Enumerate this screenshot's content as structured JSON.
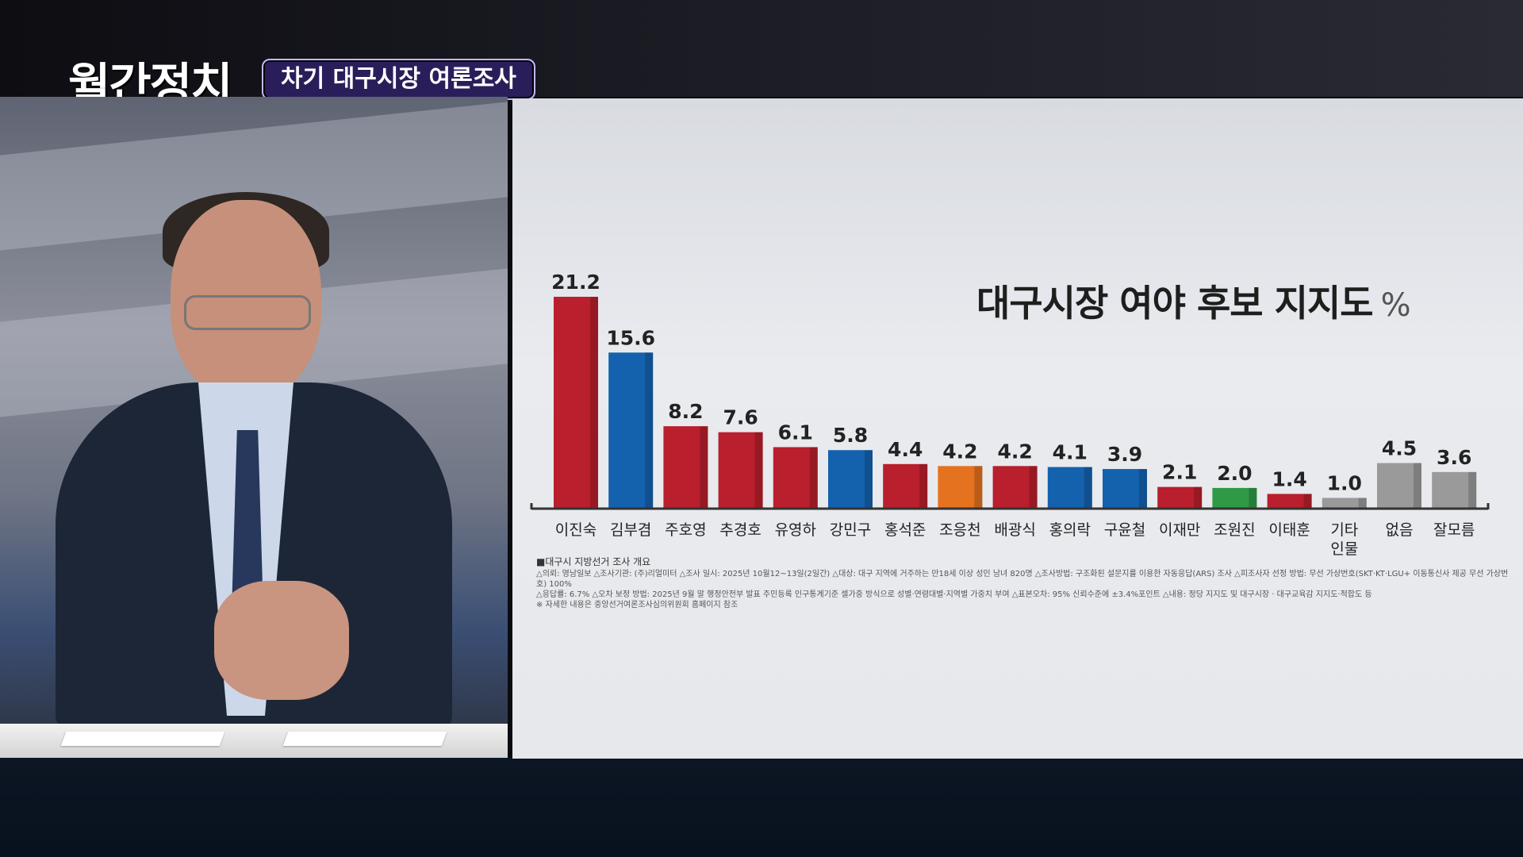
{
  "broadcast": {
    "program_logo": "월간정치",
    "topic_tag": "차기 대구시장 여론조사"
  },
  "colors": {
    "red": "#b91f2c",
    "blue": "#1462ae",
    "orange": "#e4721f",
    "green": "#2f9a46",
    "gray": "#9a9a9a"
  },
  "chart_data": {
    "type": "bar",
    "title": "대구시장 여야 후보 지지도",
    "unit": "%",
    "categories": [
      "이진숙",
      "김부겸",
      "주호영",
      "추경호",
      "유영하",
      "강민구",
      "홍석준",
      "조응천",
      "배광식",
      "홍의락",
      "구윤철",
      "이재만",
      "조원진",
      "이태훈",
      "기타 인물",
      "없음",
      "잘모름"
    ],
    "values": [
      21.2,
      15.6,
      8.2,
      7.6,
      6.1,
      5.8,
      4.4,
      4.2,
      4.2,
      4.1,
      3.9,
      2.1,
      2.0,
      1.4,
      1.0,
      4.5,
      3.6
    ],
    "value_labels": [
      "21.2",
      "15.6",
      "8.2",
      "7.6",
      "6.1",
      "5.8",
      "4.4",
      "4.2",
      "4.2",
      "4.1",
      "3.9",
      "2.1",
      "2.0",
      "1.4",
      "1.0",
      "4.5",
      "3.6"
    ],
    "bar_colors": [
      "red",
      "blue",
      "red",
      "red",
      "red",
      "blue",
      "red",
      "orange",
      "red",
      "blue",
      "blue",
      "red",
      "green",
      "red",
      "gray",
      "gray",
      "gray"
    ],
    "ylim": [
      0,
      22
    ],
    "grid": false,
    "legend": "none"
  },
  "footnotes": {
    "title": "■대구시 지방선거 조사 개요",
    "lines": [
      "△의뢰: 영남일보 △조사기관: (주)리얼미터 △조사 일시: 2025년 10월12~13일(2일간) △대상: 대구 지역에 거주하는 만18세 이상 성인 남녀 820명 △조사방법: 구조화된 설문지를 이용한 자동응답(ARS) 조사 △피조사자 선정 방법: 무선 가상번호(SKT·KT·LGU+ 이동통신사 제공 무선 가상번호) 100%",
      "△응답률: 6.7% △오차 보정 방법: 2025년 9월 말 행정안전부 발표 주민등록 인구통계기준 셀가중 방식으로 성별·연령대별·지역별 가중치 부여 △표본오차: 95% 신뢰수준에 ±3.4%포인트 △내용: 정당 지지도 및 대구시장 · 대구교육감 지지도·적합도 등",
      "※ 자세한 내용은 중앙선거여론조사심의위원회 홈페이지 참조"
    ]
  }
}
